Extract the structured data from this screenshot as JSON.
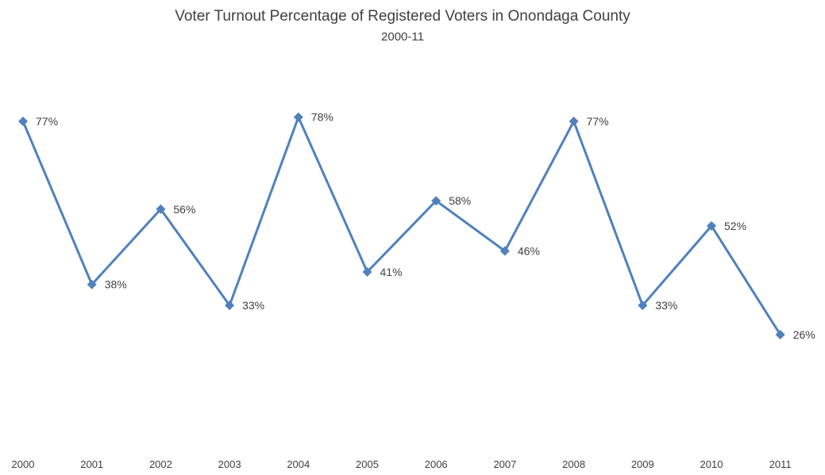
{
  "chart_data": {
    "type": "line",
    "title": "Voter Turnout Percentage of Registered Voters in Onondaga County",
    "subtitle": "2000-11",
    "categories": [
      "2000",
      "2001",
      "2002",
      "2003",
      "2004",
      "2005",
      "2006",
      "2007",
      "2008",
      "2009",
      "2010",
      "2011"
    ],
    "series": [
      {
        "values": [
          77,
          38,
          56,
          33,
          78,
          41,
          58,
          46,
          77,
          33,
          52,
          26
        ],
        "labels": [
          "77%",
          "38%",
          "56%",
          "33%",
          "78%",
          "41%",
          "58%",
          "46%",
          "77%",
          "33%",
          "52%",
          "26%"
        ],
        "color": "#4F81BD",
        "marker": "diamond"
      }
    ],
    "xlabel": "",
    "ylabel": "",
    "ylim": [
      0,
      100
    ],
    "grid": false,
    "legend": "none",
    "data_labels": "right"
  }
}
